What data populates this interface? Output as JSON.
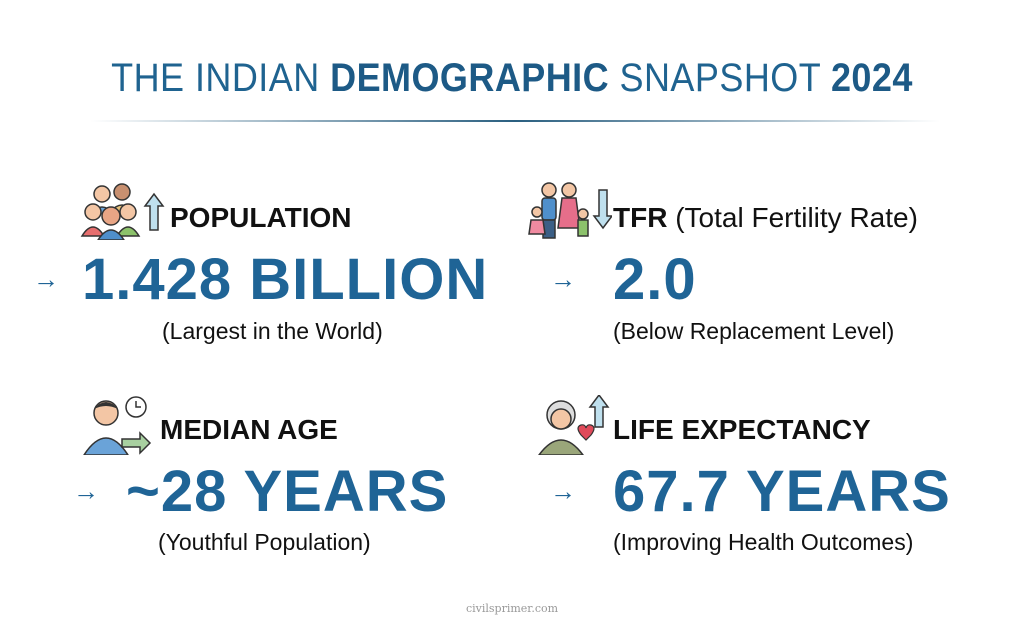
{
  "title": {
    "part1": "THE INDIAN ",
    "part2": "DEMOGRAPHIC",
    "part3": " SNAPSHOT ",
    "part4": "2024"
  },
  "colors": {
    "accent": "#1f6496",
    "text": "#111111"
  },
  "stats": [
    {
      "label": "POPULATION",
      "label_extra": "",
      "value": "1.428 BILLION",
      "sub": "(Largest in the World)",
      "icon": "family-group-up-arrow-icon"
    },
    {
      "label": "TFR",
      "label_extra": " (Total Fertility Rate)",
      "value": "2.0",
      "sub": "(Below Replacement Level)",
      "icon": "family-down-arrow-icon"
    },
    {
      "label": "MEDIAN AGE",
      "label_extra": "",
      "value": "~28 YEARS",
      "sub": "(Youthful Population)",
      "icon": "person-clock-icon"
    },
    {
      "label": "LIFE EXPECTANCY",
      "label_extra": "",
      "value": "67.7 YEARS",
      "sub": "(Improving Health Outcomes)",
      "icon": "elderly-heart-up-arrow-icon"
    }
  ],
  "arrow_glyph": "→",
  "footer": "civilsprimer.com"
}
